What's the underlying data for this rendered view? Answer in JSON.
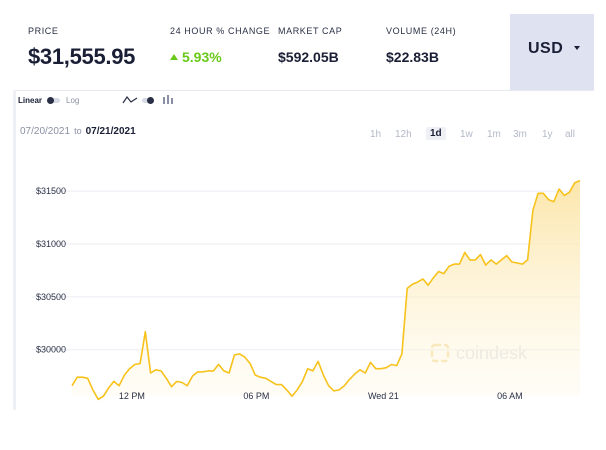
{
  "header": {
    "price": {
      "label": "PRICE",
      "value": "$31,555.95"
    },
    "change": {
      "label": "24 HOUR % CHANGE",
      "value": "5.93%"
    },
    "market_cap": {
      "label": "MARKET CAP",
      "value": "$592.05B"
    },
    "volume": {
      "label": "VOLUME (24H)",
      "value": "$22.83B"
    },
    "currency": "USD"
  },
  "controls": {
    "scale_linear": "Linear",
    "scale_log": "Log",
    "date_from": "07/20/2021",
    "date_to_word": "to",
    "date_to": "07/21/2021",
    "ranges": [
      "1h",
      "12h",
      "1d",
      "1w",
      "1m",
      "3m",
      "1y",
      "all"
    ],
    "active_range": "1d"
  },
  "watermark": "coindesk",
  "colors": {
    "line": "#f7c21b",
    "positive": "#6ac91a",
    "accent_panel": "#dfe3f1"
  },
  "chart_data": {
    "type": "area",
    "x_ticks": [
      "12 PM",
      "06 PM",
      "Wed 21",
      "06 AM"
    ],
    "y_ticks": [
      "$31500",
      "$31000",
      "$30500",
      "$30000"
    ],
    "ylim": [
      29600,
      31700
    ],
    "grid": true,
    "y": [
      29660,
      29740,
      29740,
      29730,
      29620,
      29530,
      29560,
      29640,
      29700,
      29660,
      29760,
      29820,
      29860,
      29870,
      30170,
      29780,
      29810,
      29800,
      29730,
      29650,
      29700,
      29690,
      29660,
      29750,
      29790,
      29790,
      29800,
      29800,
      29860,
      29800,
      29780,
      29950,
      29960,
      29930,
      29870,
      29760,
      29740,
      29730,
      29700,
      29670,
      29670,
      29620,
      29560,
      29620,
      29700,
      29820,
      29800,
      29890,
      29760,
      29660,
      29610,
      29620,
      29660,
      29720,
      29770,
      29810,
      29780,
      29880,
      29820,
      29820,
      29830,
      29860,
      29850,
      29960,
      30580,
      30620,
      30640,
      30670,
      30610,
      30680,
      30740,
      30720,
      30790,
      30810,
      30810,
      30920,
      30850,
      30850,
      30900,
      30800,
      30850,
      30810,
      30850,
      30890,
      30830,
      30820,
      30810,
      30850,
      31320,
      31480,
      31480,
      31420,
      31400,
      31520,
      31460,
      31490,
      31580,
      31600
    ]
  }
}
